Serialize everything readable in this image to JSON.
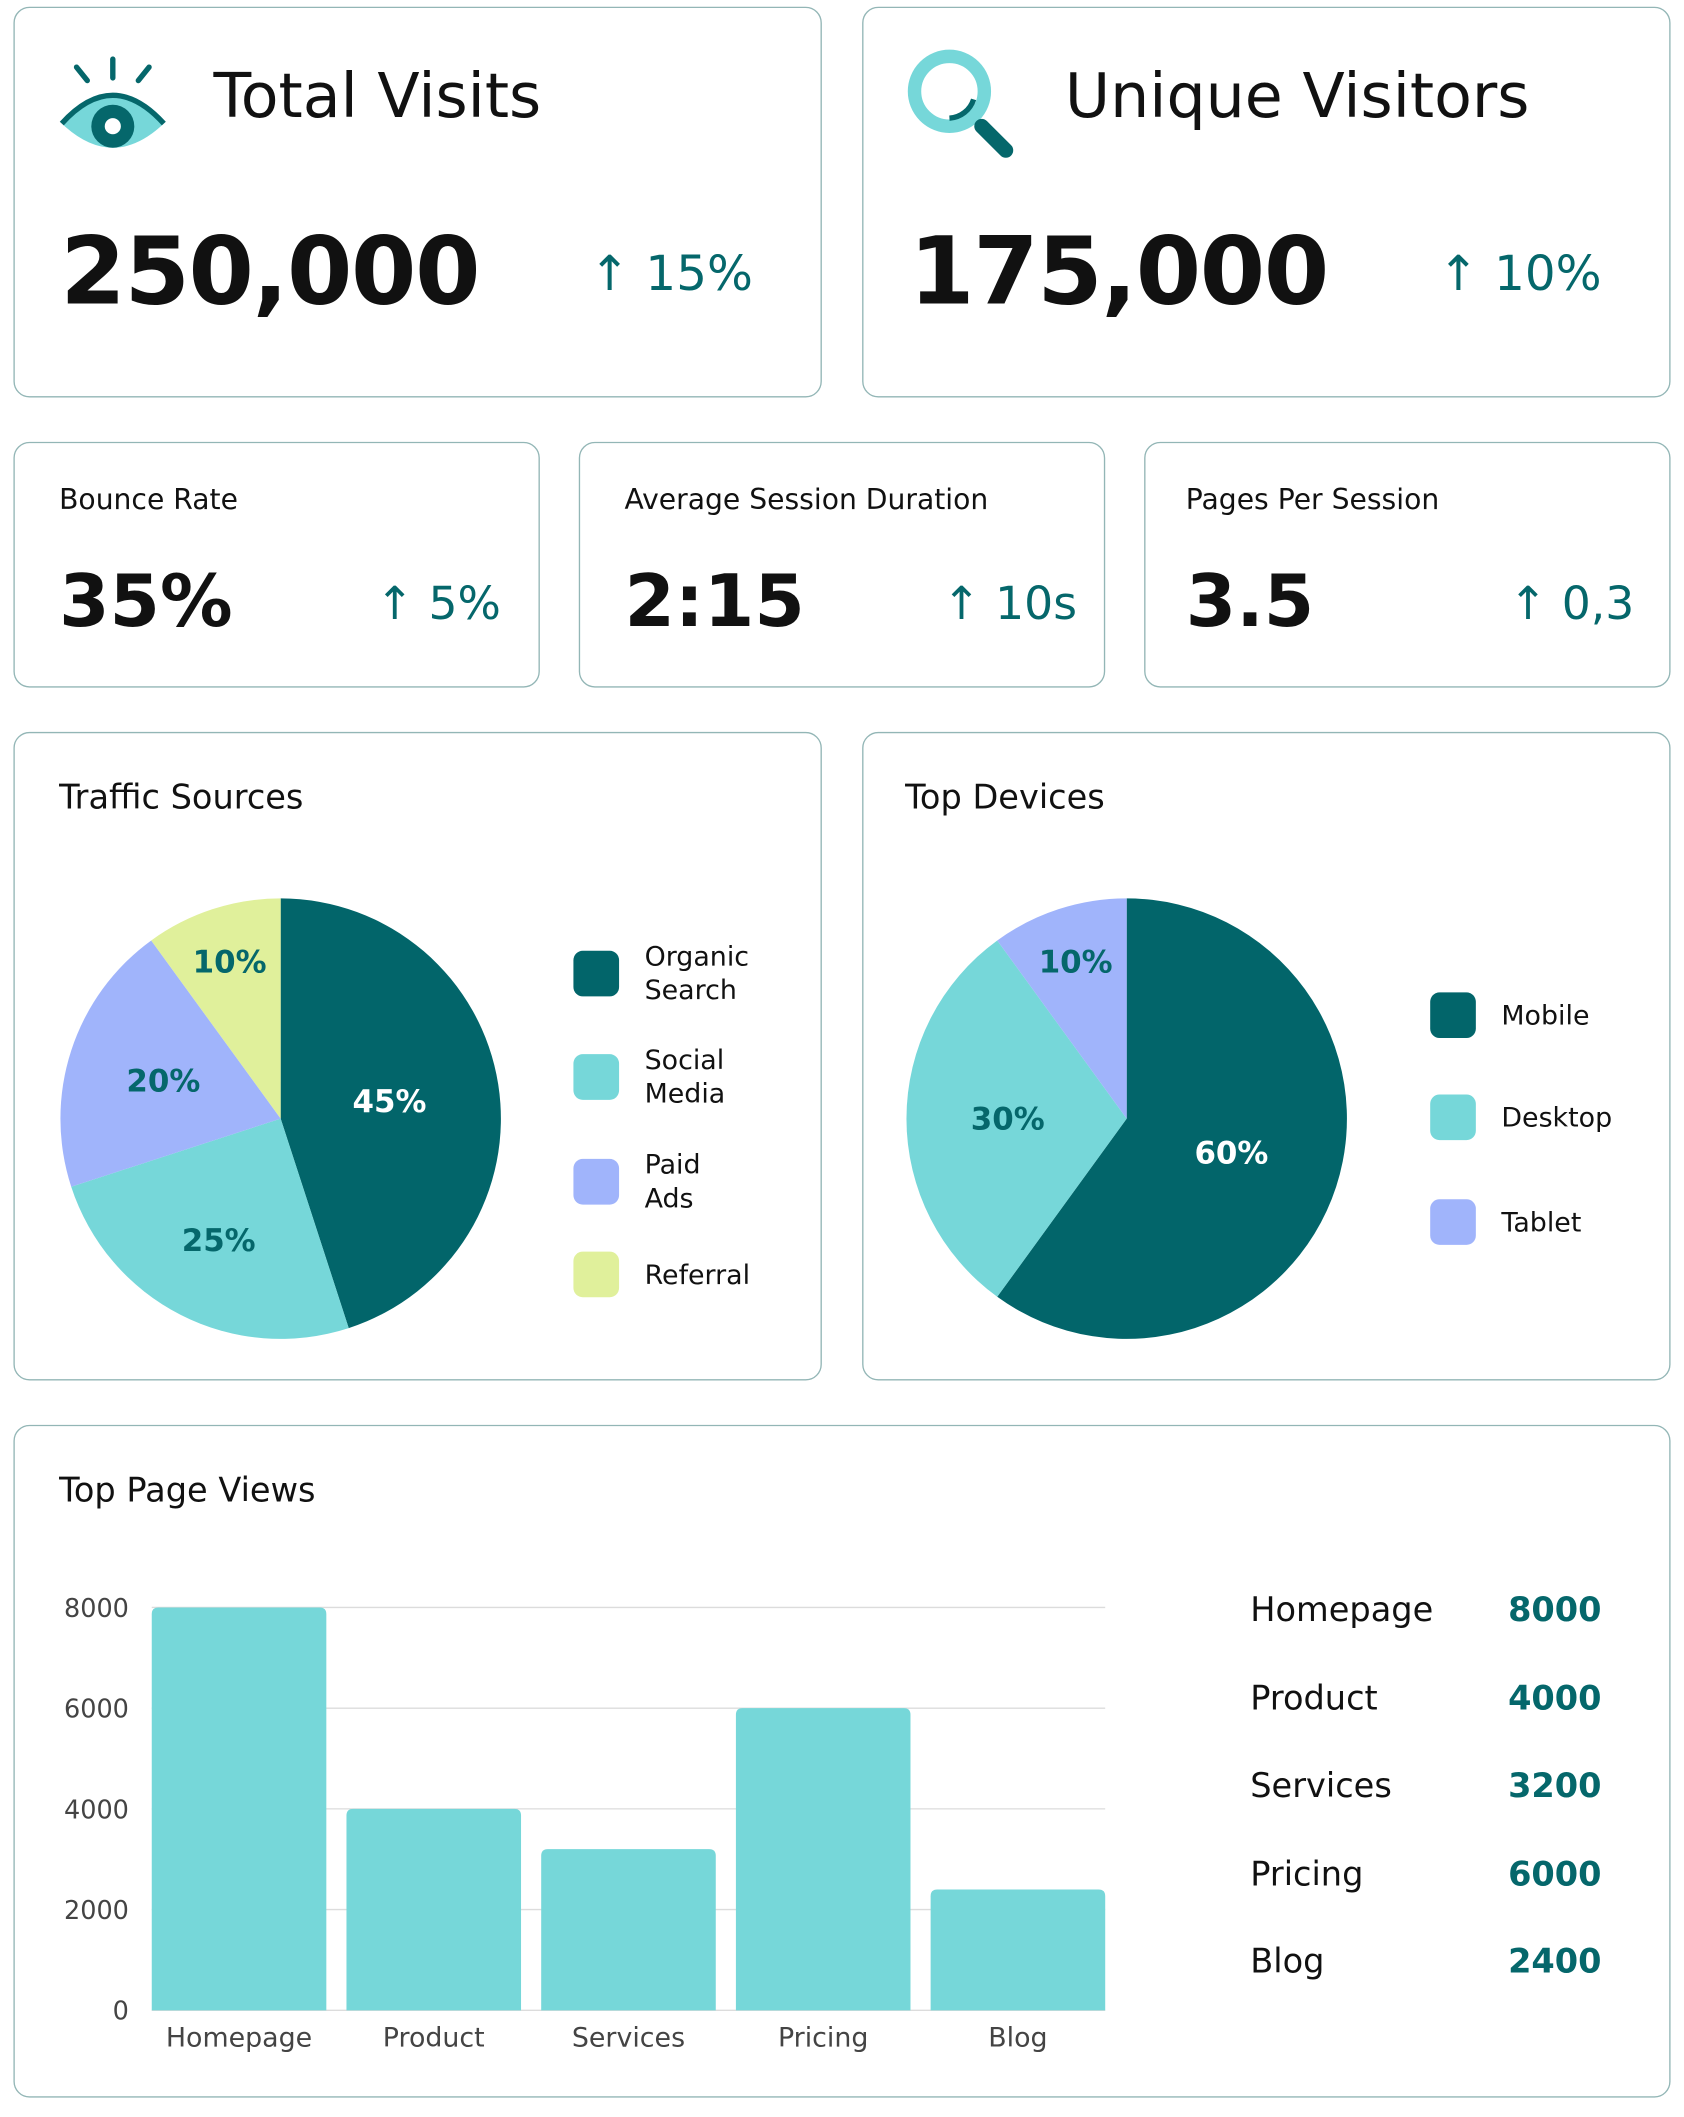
{
  "colors": {
    "dark_teal": "#02656a",
    "light_teal": "#76d7d9",
    "purple": "#a0b4fb",
    "yellow": "#e0f09b",
    "border": "#93b6b6"
  },
  "kpis": {
    "total_visits": {
      "title": "Total Visits",
      "value": "250,000",
      "delta": "15%",
      "icon": "eye-icon",
      "trend": "up"
    },
    "unique_visitors": {
      "title": "Unique Visitors",
      "value": "175,000",
      "delta": "10%",
      "icon": "magnifier-icon",
      "trend": "up"
    }
  },
  "metrics": [
    {
      "title": "Bounce Rate",
      "value": "35%",
      "delta": "5%",
      "trend": "up"
    },
    {
      "title": "Average Session Duration",
      "value": "2:15",
      "delta": "10s",
      "trend": "up"
    },
    {
      "title": "Pages Per Session",
      "value": "3.5",
      "delta": "0,3",
      "trend": "up"
    }
  ],
  "chart_data": [
    {
      "type": "pie",
      "title": "Traffic Sources",
      "categories": [
        "Organic Search",
        "Social Media",
        "Paid Ads",
        "Referral"
      ],
      "legend_lines": [
        [
          "Organic",
          "Search"
        ],
        [
          "Social",
          "Media"
        ],
        [
          "Paid",
          "Ads"
        ],
        [
          "Referral"
        ]
      ],
      "values": [
        45,
        25,
        20,
        10
      ],
      "labels": [
        "45%",
        "25%",
        "20%",
        "10%"
      ],
      "colors": [
        "#02656a",
        "#76d7d9",
        "#a0b4fb",
        "#e0f09b"
      ],
      "legend": "right"
    },
    {
      "type": "pie",
      "title": "Top Devices",
      "categories": [
        "Mobile",
        "Desktop",
        "Tablet"
      ],
      "values": [
        60,
        30,
        10
      ],
      "labels": [
        "60%",
        "30%",
        "10%"
      ],
      "colors": [
        "#02656a",
        "#76d7d9",
        "#a0b4fb"
      ],
      "legend": "right"
    },
    {
      "type": "bar",
      "title": "Top Page Views",
      "categories": [
        "Homepage",
        "Product",
        "Services",
        "Pricing",
        "Blog"
      ],
      "values": [
        8000,
        4000,
        3200,
        6000,
        2400
      ],
      "ylim": [
        0,
        8000
      ],
      "yticks": [
        "0",
        "2000",
        "4000",
        "6000",
        "8000"
      ],
      "grid": true,
      "color": "#76d7d9",
      "table": [
        {
          "page": "Homepage",
          "views": "8000"
        },
        {
          "page": "Product",
          "views": "4000"
        },
        {
          "page": "Services",
          "views": "3200"
        },
        {
          "page": "Pricing",
          "views": "6000"
        },
        {
          "page": "Blog",
          "views": "2400"
        }
      ]
    }
  ]
}
